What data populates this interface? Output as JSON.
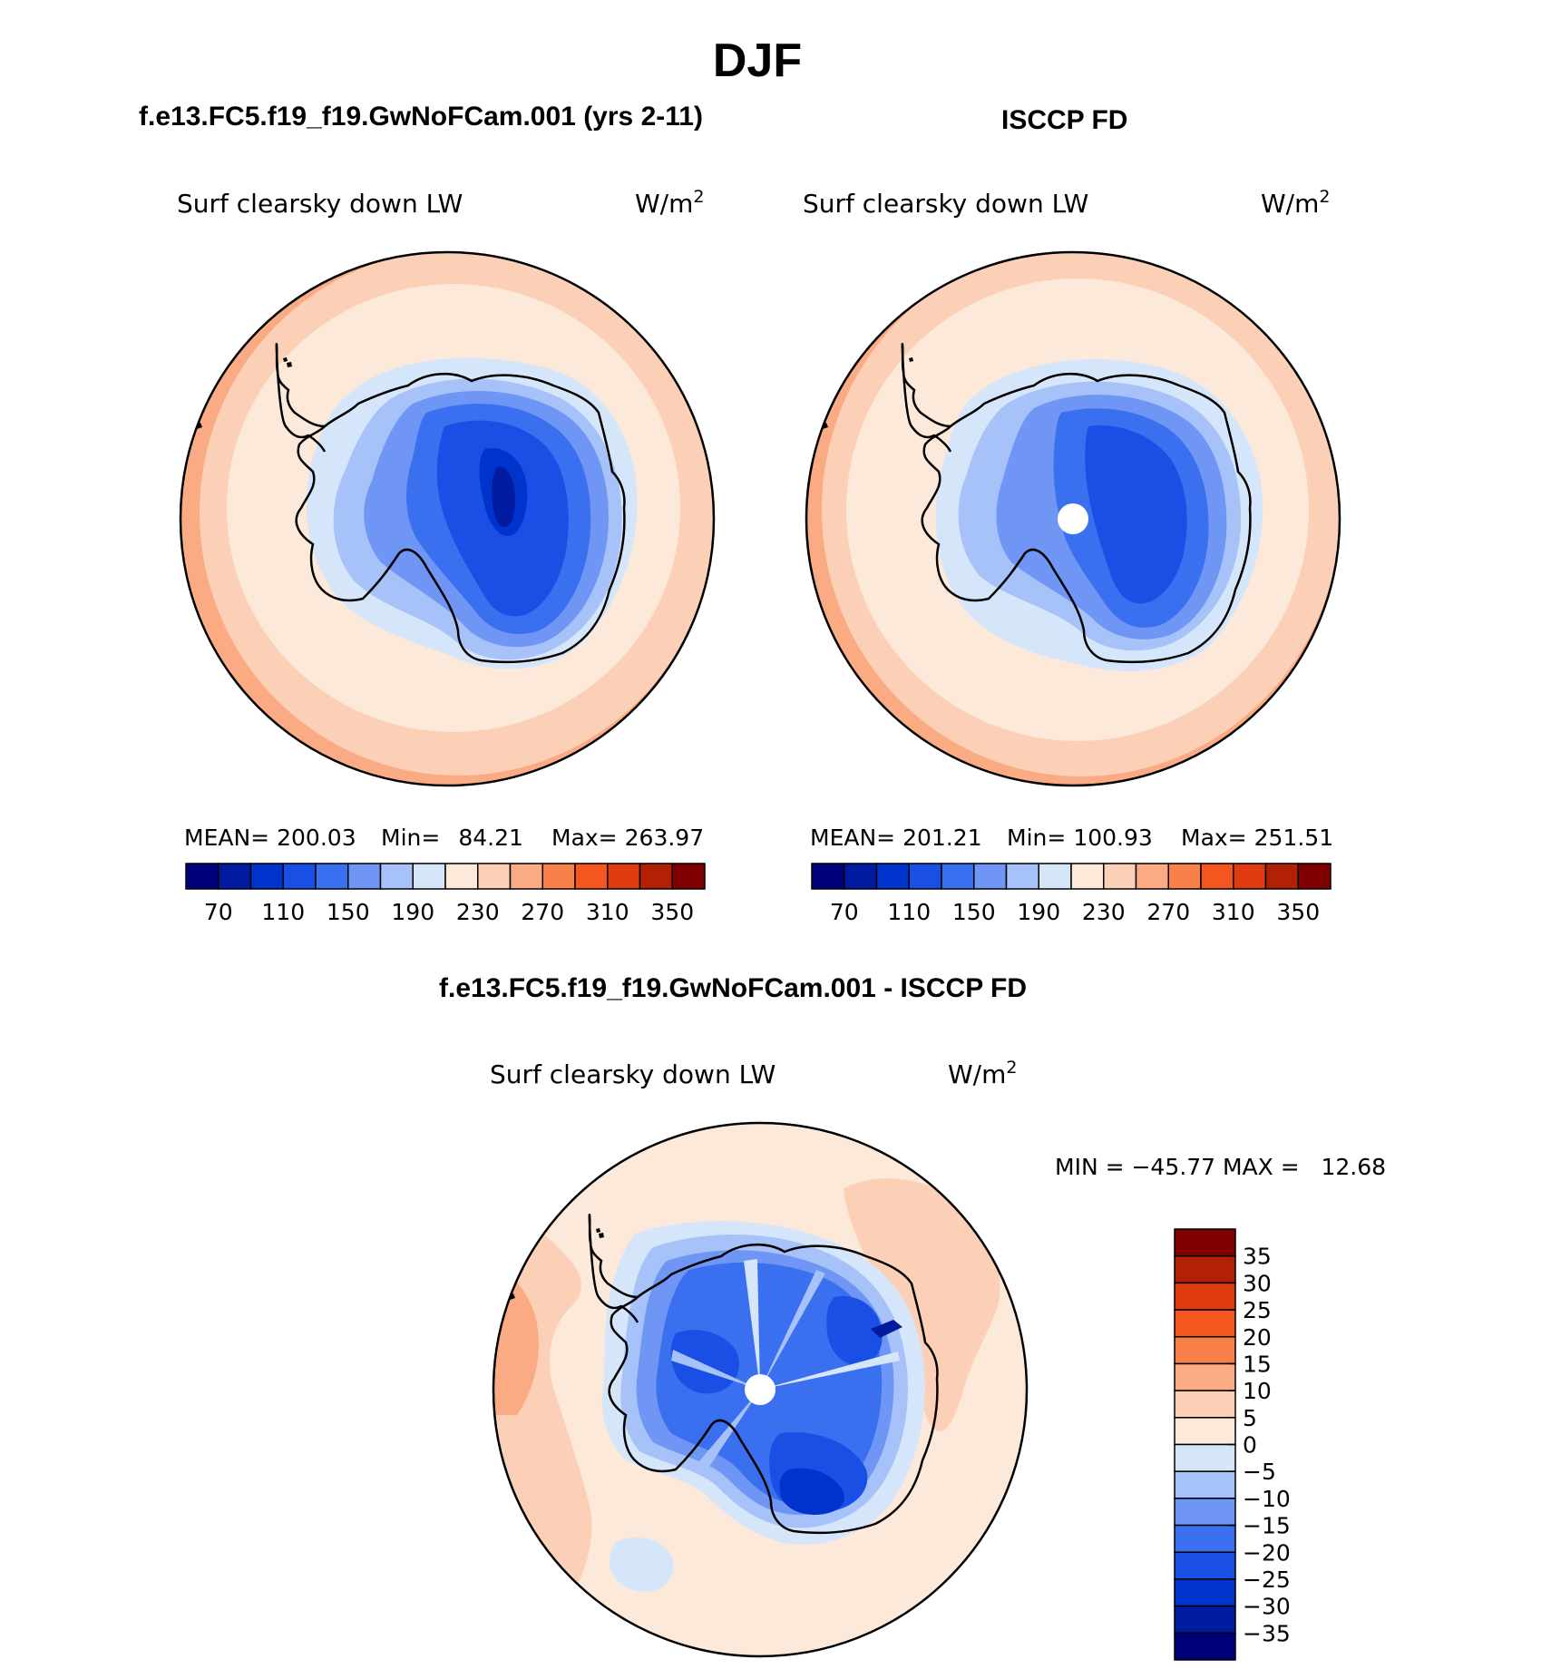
{
  "main_title": "DJF",
  "colors": {
    "abs_fills": [
      "#00007a",
      "#001aa0",
      "#0033cc",
      "#1a4fe6",
      "#3a6ff0",
      "#6f96f4",
      "#a6c2f8",
      "#d6e6fa",
      "#fde9d9",
      "#fcd0b6",
      "#fbab84",
      "#f98049",
      "#f5551f",
      "#e03a10",
      "#b22006",
      "#7f0000"
    ],
    "diff_fills": [
      "#00007a",
      "#001aa0",
      "#0033cc",
      "#1a4fe6",
      "#3a6ff0",
      "#6f96f4",
      "#a6c2f8",
      "#d6e6fa",
      "#fde9d9",
      "#fcd0b6",
      "#fbab84",
      "#f98049",
      "#f5551f",
      "#e03a10",
      "#b22006",
      "#7f0000"
    ],
    "coast": "#000000"
  },
  "panels": {
    "model": {
      "heading": "f.e13.FC5.f19_f19.GwNoFCam.001 (yrs 2-11)",
      "variable": "Surf clearsky down LW",
      "units_base": "W/m",
      "units_exp": "2",
      "stats": {
        "mean_label": "MEAN=",
        "mean": "200.03",
        "min_label": "Min=",
        "min": "84.21",
        "max_label": "Max=",
        "max": "263.97"
      },
      "has_pole_hole": false
    },
    "obs": {
      "heading": "ISCCP FD",
      "variable": "Surf clearsky down LW",
      "units_base": "W/m",
      "units_exp": "2",
      "stats": {
        "mean_label": "MEAN=",
        "mean": "201.21",
        "min_label": "Min=",
        "min": "100.93",
        "max_label": "Max=",
        "max": "251.51"
      },
      "has_pole_hole": true
    },
    "diff": {
      "heading": "f.e13.FC5.f19_f19.GwNoFCam.001 - ISCCP FD",
      "variable": "Surf clearsky down LW",
      "units_base": "W/m",
      "units_exp": "2",
      "stats_text": "MIN = −45.77 MAX =   12.68",
      "has_pole_hole": true
    }
  },
  "colorbar_abs": {
    "tick_labels": [
      "70",
      "110",
      "150",
      "190",
      "230",
      "270",
      "310",
      "350"
    ]
  },
  "colorbar_diff": {
    "tick_labels": [
      "35",
      "30",
      "25",
      "20",
      "15",
      "10",
      "5",
      "0",
      "−5",
      "−10",
      "−15",
      "−20",
      "−25",
      "−30",
      "−35"
    ]
  }
}
